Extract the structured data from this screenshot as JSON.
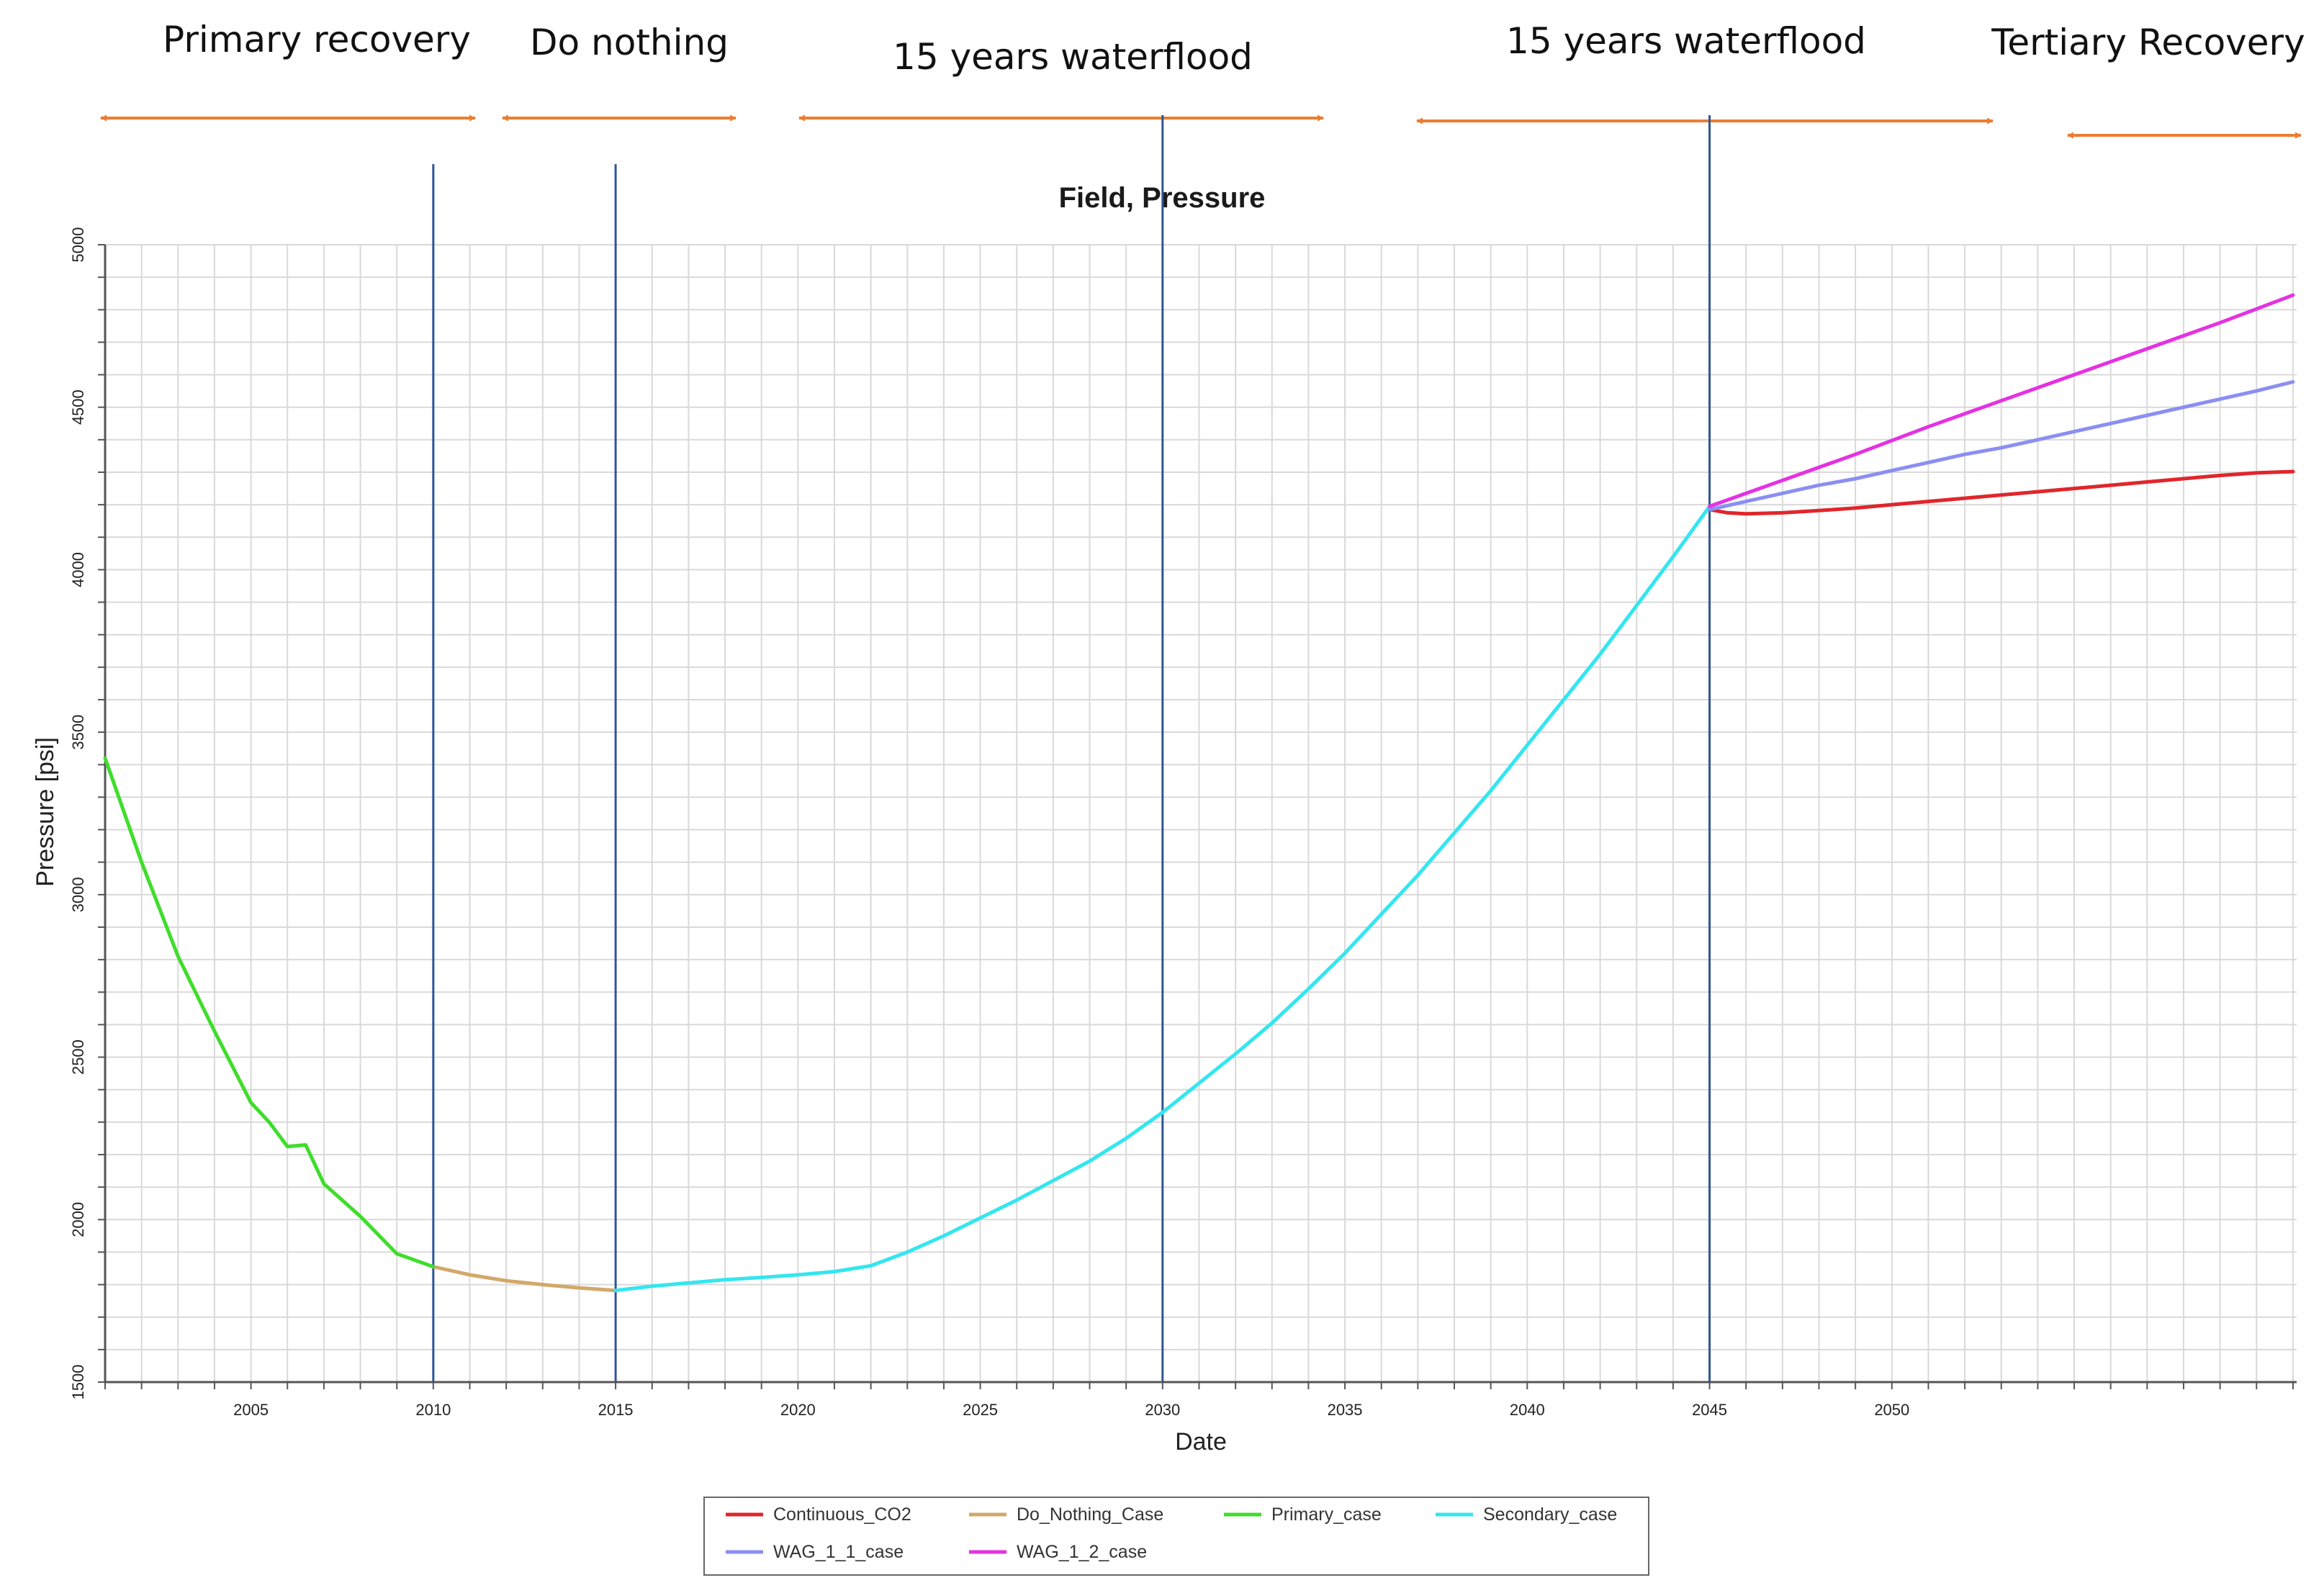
{
  "phase_labels": [
    "Primary recovery",
    "Do nothing",
    "15 years waterflood",
    "15 years waterflood",
    "Tertiary Recovery"
  ],
  "colors": {
    "arrow": "#ED7D31",
    "divider": "#2E5597",
    "grid": "#D9D9D9",
    "axis": "#555555"
  },
  "chart_data": {
    "type": "line",
    "title": "Field, Pressure",
    "xlabel": "Date",
    "ylabel": "Pressure [psi]",
    "xlim": [
      2001,
      2061.1
    ],
    "ylim": [
      1500,
      5000
    ],
    "x_ticks": [
      2005,
      2010,
      2015,
      2020,
      2025,
      2030,
      2035,
      2040,
      2045,
      2050
    ],
    "x_tick_labels": [
      "2005",
      "2010",
      "2015",
      "2020",
      "2025",
      "2030",
      "2035",
      "2040",
      "2045",
      "2050"
    ],
    "y_ticks": [
      1500,
      2000,
      2500,
      3000,
      3500,
      4000,
      4500,
      5000
    ],
    "y_tick_labels": [
      "1500",
      "2000",
      "2500",
      "3000",
      "3500",
      "4000",
      "4500",
      "5000"
    ],
    "phase_boundaries": [
      2010,
      2015,
      2030,
      2045
    ],
    "grid": true,
    "legend_position": "bottom",
    "series": [
      {
        "name": "Continuous_CO2",
        "color": "#E0262C",
        "x": [
          2045,
          2045.5,
          2046,
          2047,
          2048,
          2049,
          2050,
          2051,
          2052,
          2053,
          2054,
          2055,
          2056,
          2057,
          2058,
          2059,
          2060,
          2061
        ],
        "y": [
          4185,
          4175,
          4172,
          4175,
          4182,
          4190,
          4200,
          4210,
          4220,
          4230,
          4240,
          4250,
          4260,
          4270,
          4280,
          4290,
          4298,
          4302
        ]
      },
      {
        "name": "Do_Nothing_Case",
        "color": "#D2A86A",
        "x": [
          2010,
          2011,
          2012,
          2013,
          2014,
          2015
        ],
        "y": [
          1855,
          1830,
          1812,
          1800,
          1790,
          1782
        ]
      },
      {
        "name": "Primary_case",
        "color": "#3FDD2B",
        "x": [
          2001,
          2002,
          2003,
          2004,
          2005,
          2005.5,
          2006,
          2006.5,
          2007,
          2008,
          2009,
          2010
        ],
        "y": [
          3420,
          3100,
          2810,
          2580,
          2360,
          2300,
          2225,
          2230,
          2110,
          2010,
          1895,
          1855
        ]
      },
      {
        "name": "Secondary_case",
        "color": "#33E6EF",
        "x": [
          2015,
          2016,
          2017,
          2018,
          2019,
          2020,
          2021,
          2022,
          2023,
          2024,
          2025,
          2026,
          2027,
          2028,
          2029,
          2030,
          2031,
          2032,
          2033,
          2034,
          2035,
          2036,
          2037,
          2038,
          2039,
          2040,
          2041,
          2042,
          2043,
          2044,
          2045
        ],
        "y": [
          1782,
          1795,
          1805,
          1815,
          1822,
          1830,
          1840,
          1858,
          1900,
          1950,
          2005,
          2060,
          2120,
          2180,
          2250,
          2330,
          2420,
          2510,
          2605,
          2710,
          2820,
          2940,
          3060,
          3190,
          3320,
          3460,
          3600,
          3740,
          3890,
          4040,
          4195
        ]
      },
      {
        "name": "WAG_1_1_case",
        "color": "#8B8FF1",
        "x": [
          2045,
          2046,
          2047,
          2048,
          2049,
          2050,
          2051,
          2052,
          2053,
          2054,
          2055,
          2056,
          2057,
          2058,
          2059,
          2060,
          2061
        ],
        "y": [
          4185,
          4210,
          4235,
          4260,
          4280,
          4305,
          4330,
          4355,
          4375,
          4400,
          4425,
          4450,
          4475,
          4500,
          4525,
          4550,
          4578
        ]
      },
      {
        "name": "WAG_1_2_case",
        "color": "#E432E2",
        "x": [
          2045,
          2047,
          2049,
          2051,
          2053,
          2055,
          2057,
          2059,
          2061
        ],
        "y": [
          4195,
          4275,
          4355,
          4440,
          4520,
          4600,
          4680,
          4760,
          4845
        ]
      }
    ]
  }
}
